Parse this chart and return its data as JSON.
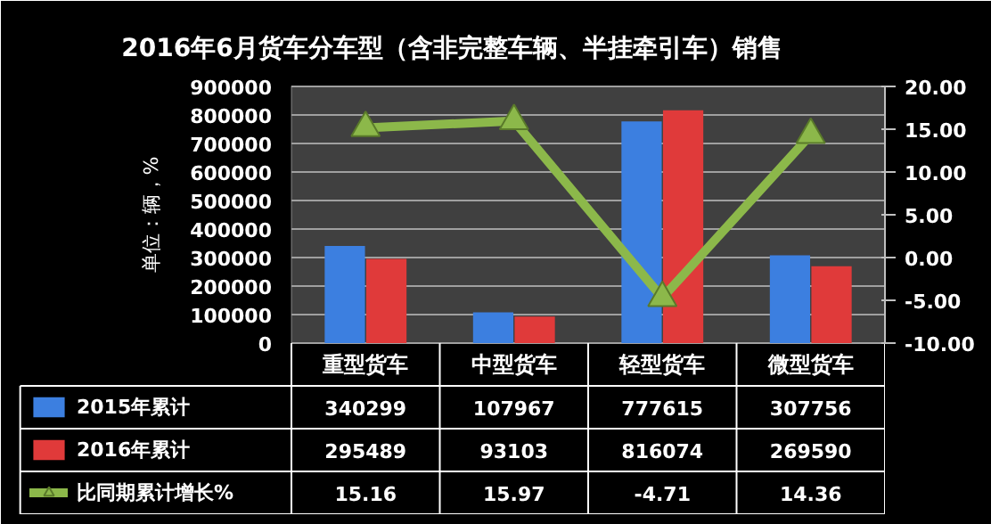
{
  "chart_data": {
    "type": "bar",
    "title": "2016年6月货车分车型（含非完整车辆、半挂牵引车）销售",
    "ylabel": "单位：辆，%",
    "categories": [
      "重型货车",
      "中型货车",
      "轻型货车",
      "微型货车"
    ],
    "series": [
      {
        "name": "2015年累计",
        "color": "#3c7fe0",
        "values": [
          340299,
          107967,
          777615,
          307756
        ]
      },
      {
        "name": "2016年累计",
        "color": "#e03a3a",
        "values": [
          295489,
          93103,
          816074,
          269590
        ]
      },
      {
        "name": "比同期累计增长%",
        "type": "line",
        "axis": "y2",
        "color": "#8cb84a",
        "marker": "triangle",
        "values": [
          15.16,
          15.97,
          -4.71,
          14.36
        ]
      }
    ],
    "ylim": [
      0,
      900000
    ],
    "yticks": [
      0,
      100000,
      200000,
      300000,
      400000,
      500000,
      600000,
      700000,
      800000,
      900000
    ],
    "y2lim": [
      -10,
      20
    ],
    "y2ticks": [
      {
        "value": -10,
        "label": "-10.00"
      },
      {
        "value": -5,
        "label": "-5.00"
      },
      {
        "value": 0,
        "label": "0.00"
      },
      {
        "value": 5,
        "label": "5.00"
      },
      {
        "value": 10,
        "label": "10.00"
      },
      {
        "value": 15,
        "label": "15.00"
      },
      {
        "value": 20,
        "label": "20.00"
      }
    ],
    "grid": "y",
    "data_labels": true,
    "legend": "bottom left"
  }
}
